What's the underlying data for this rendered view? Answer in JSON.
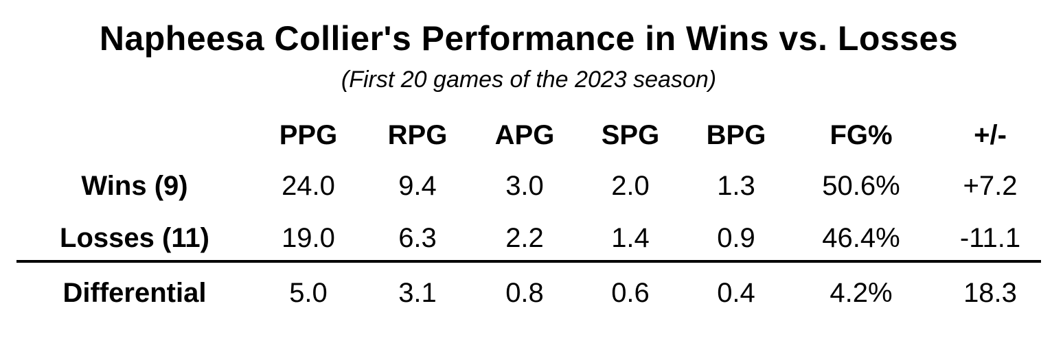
{
  "chart_data": {
    "type": "table",
    "title": "Napheesa Collier's Performance in Wins vs. Losses",
    "subtitle": "(First 20 games of the 2023 season)",
    "columns": [
      "PPG",
      "RPG",
      "APG",
      "SPG",
      "BPG",
      "FG%",
      "+/-"
    ],
    "rows": [
      {
        "label": "Wins (9)",
        "values": [
          "24.0",
          "9.4",
          "3.0",
          "2.0",
          "1.3",
          "50.6%",
          "+7.2"
        ]
      },
      {
        "label": "Losses (11)",
        "values": [
          "19.0",
          "6.3",
          "2.2",
          "1.4",
          "0.9",
          "46.4%",
          "-11.1"
        ]
      },
      {
        "label": "Differential",
        "values": [
          "5.0",
          "3.1",
          "0.8",
          "0.6",
          "0.4",
          "4.2%",
          "18.3"
        ]
      }
    ]
  }
}
